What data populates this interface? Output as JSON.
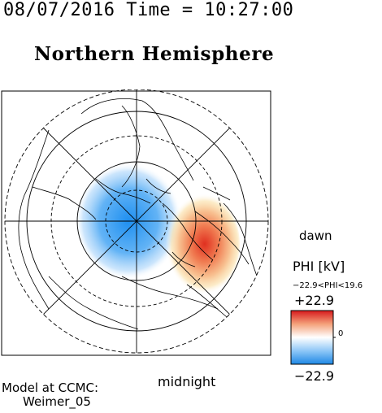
{
  "header": {
    "timestamp": "08/07/2016 Time = 10:27:00",
    "title": "Northern Hemisphere"
  },
  "map": {
    "projection": "polar",
    "hemisphere": "north",
    "variable": "PHI",
    "unit": "kV",
    "labels": {
      "dawn": "dawn",
      "midnight": "midnight"
    },
    "features": [
      "coastlines",
      "latitude-circles",
      "meridians"
    ],
    "cells": {
      "negative": {
        "center_mlt": "pre-midnight/dusk",
        "peak_value": -22.9,
        "color": "#1e8ff0"
      },
      "positive": {
        "center_mlt": "dawn",
        "peak_value": 19.6,
        "color": "#e8321e"
      }
    }
  },
  "legend": {
    "title": "PHI [kV]",
    "range_text": "−22.9<PHI<19.6",
    "max_label": "+22.9",
    "min_label": "−22.9",
    "zero_label": "0",
    "colors": {
      "max": "#d7191c",
      "mid": "#ffffff",
      "min": "#1e88e5"
    }
  },
  "model": {
    "line1": "Model at CCMC:",
    "line2": "Weimer_05"
  }
}
